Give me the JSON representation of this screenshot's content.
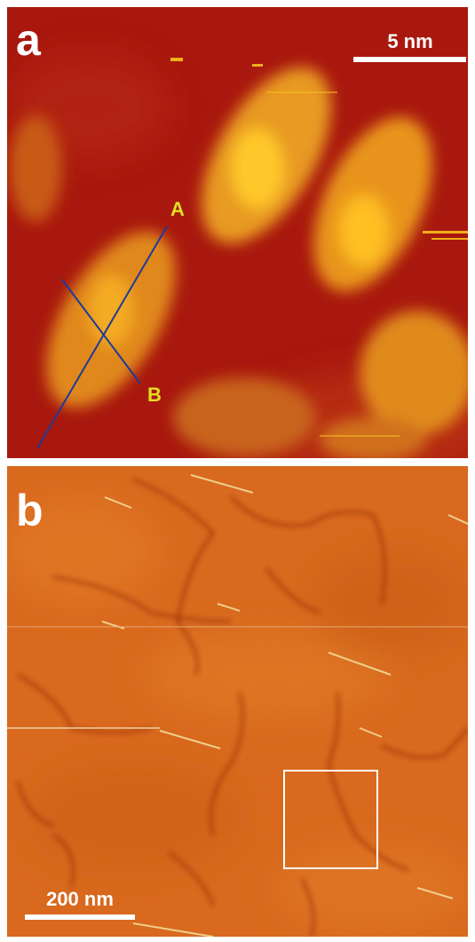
{
  "panels": [
    {
      "label": "a",
      "scale_bar": "5 nm",
      "line_labels": [
        "A",
        "B"
      ]
    },
    {
      "label": "b",
      "scale_bar": "200 nm"
    }
  ]
}
